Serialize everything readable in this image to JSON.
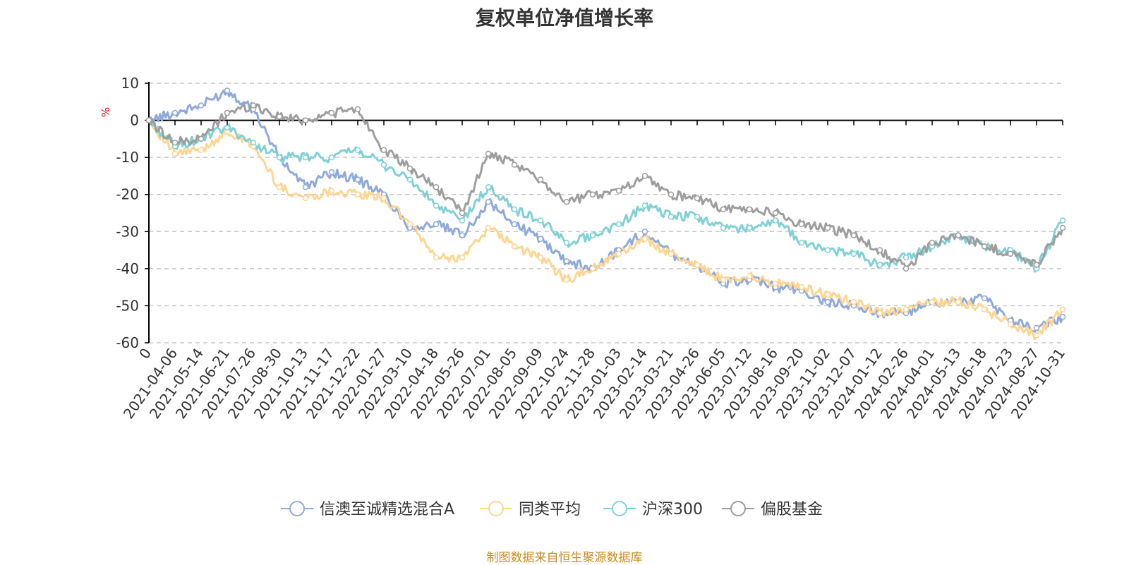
{
  "colors": {
    "fund": "#8eaadb",
    "peer": "#ffd591",
    "index": "#7fd1d6",
    "equity": "#9e9e9e",
    "axis": "#000000",
    "grid": "#c8c8c8",
    "unit": "#e00000",
    "source": "#c98b1a"
  },
  "chart_data": {
    "type": "line",
    "title": "复权单位净值增长率",
    "ylabel": "%",
    "ylim": [
      -60,
      10
    ],
    "yticks": [
      10,
      0,
      -10,
      -20,
      -30,
      -40,
      -50,
      -60
    ],
    "grid": true,
    "legend_position": "bottom-center",
    "x": [
      "0",
      "2021-04-06",
      "2021-05-14",
      "2021-06-21",
      "2021-07-26",
      "2021-08-30",
      "2021-10-13",
      "2021-11-17",
      "2021-12-22",
      "2022-01-27",
      "2022-03-10",
      "2022-04-18",
      "2022-05-26",
      "2022-07-01",
      "2022-08-05",
      "2022-09-09",
      "2022-10-24",
      "2022-11-28",
      "2023-01-03",
      "2023-02-14",
      "2023-03-21",
      "2023-04-26",
      "2023-06-05",
      "2023-07-12",
      "2023-08-16",
      "2023-09-20",
      "2023-11-02",
      "2023-12-07",
      "2024-01-12",
      "2024-02-26",
      "2024-04-01",
      "2024-05-13",
      "2024-06-18",
      "2024-07-23",
      "2024-08-27",
      "2024-10-31"
    ],
    "series": [
      {
        "name": "信澳至诚精选混合A",
        "color_key": "fund",
        "values": [
          0,
          2,
          4,
          8,
          3,
          -10,
          -18,
          -14,
          -16,
          -20,
          -29,
          -28,
          -31,
          -22,
          -28,
          -32,
          -38,
          -40,
          -35,
          -30,
          -36,
          -39,
          -44,
          -43,
          -45,
          -46,
          -49,
          -50,
          -52,
          -52,
          -49,
          -49,
          -48,
          -54,
          -56,
          -53
        ]
      },
      {
        "name": "同类平均",
        "color_key": "peer",
        "values": [
          0,
          -9,
          -8,
          -3,
          -7,
          -18,
          -21,
          -19,
          -20,
          -21,
          -28,
          -37,
          -37,
          -29,
          -34,
          -37,
          -43,
          -40,
          -36,
          -32,
          -36,
          -39,
          -43,
          -42,
          -44,
          -45,
          -47,
          -49,
          -52,
          -51,
          -49,
          -49,
          -51,
          -55,
          -58,
          -51
        ]
      },
      {
        "name": "沪深300",
        "color_key": "index",
        "values": [
          0,
          -7,
          -5,
          -2,
          -6,
          -10,
          -10,
          -10,
          -8,
          -12,
          -16,
          -23,
          -27,
          -18,
          -24,
          -27,
          -33,
          -31,
          -28,
          -23,
          -26,
          -26,
          -29,
          -29,
          -27,
          -33,
          -35,
          -36,
          -39,
          -37,
          -34,
          -31,
          -34,
          -35,
          -40,
          -27
        ]
      },
      {
        "name": "偏股基金",
        "color_key": "equity",
        "values": [
          0,
          -6,
          -5,
          2,
          4,
          1,
          0,
          2,
          3,
          -8,
          -13,
          -18,
          -25,
          -9,
          -12,
          -16,
          -22,
          -20,
          -19,
          -15,
          -20,
          -21,
          -24,
          -24,
          -25,
          -28,
          -29,
          -31,
          -35,
          -40,
          -33,
          -31,
          -34,
          -36,
          -39,
          -29
        ]
      }
    ]
  },
  "source_note": "制图数据来自恒生聚源数据库"
}
